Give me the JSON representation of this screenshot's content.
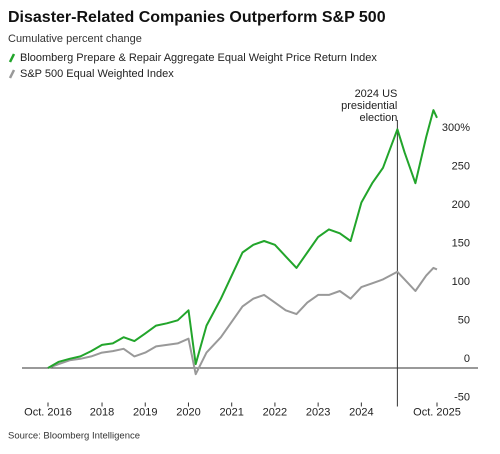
{
  "chart_data": {
    "type": "line",
    "title": "Disaster-Related Companies Outperform S&P 500",
    "subtitle": "Cumulative percent change",
    "source": "Source: Bloomberg Intelligence",
    "x": [
      "2016-10",
      "2017-01",
      "2017-04",
      "2017-07",
      "2017-10",
      "2018-01",
      "2018-04",
      "2018-07",
      "2018-10",
      "2019-01",
      "2019-04",
      "2019-07",
      "2019-10",
      "2020-01",
      "2020-03",
      "2020-06",
      "2020-10",
      "2021-01",
      "2021-04",
      "2021-07",
      "2021-10",
      "2022-01",
      "2022-04",
      "2022-07",
      "2022-10",
      "2023-01",
      "2023-04",
      "2023-07",
      "2023-10",
      "2024-01",
      "2024-04",
      "2024-07",
      "2024-11",
      "2025-01",
      "2025-04",
      "2025-07",
      "2025-09",
      "2025-10"
    ],
    "series": [
      {
        "name": "Bloomberg Prepare & Repair Aggregate Equal Weight Price Return Index",
        "color": "#22a52b",
        "values": [
          0,
          8,
          12,
          15,
          22,
          30,
          32,
          40,
          35,
          45,
          55,
          58,
          62,
          75,
          5,
          55,
          90,
          120,
          150,
          160,
          165,
          160,
          145,
          130,
          150,
          170,
          180,
          175,
          165,
          215,
          240,
          260,
          310,
          280,
          240,
          300,
          335,
          325
        ]
      },
      {
        "name": "S&P 500 Equal Weighted Index",
        "color": "#999999",
        "values": [
          0,
          5,
          10,
          12,
          15,
          20,
          22,
          25,
          15,
          20,
          28,
          30,
          32,
          38,
          -8,
          20,
          40,
          60,
          80,
          90,
          95,
          85,
          75,
          70,
          85,
          95,
          95,
          100,
          90,
          105,
          110,
          115,
          125,
          115,
          100,
          120,
          130,
          128
        ]
      }
    ],
    "xlim": [
      "2016-10",
      "2025-10"
    ],
    "xticks": [
      {
        "value": "2016-10",
        "label": "Oct. 2016"
      },
      {
        "value": "2018-01",
        "label": "2018"
      },
      {
        "value": "2019-01",
        "label": "2019"
      },
      {
        "value": "2020-01",
        "label": "2020"
      },
      {
        "value": "2021-01",
        "label": "2021"
      },
      {
        "value": "2022-01",
        "label": "2022"
      },
      {
        "value": "2023-01",
        "label": "2023"
      },
      {
        "value": "2024-01",
        "label": "2024"
      },
      {
        "value": "2025-10",
        "label": "Oct. 2025"
      }
    ],
    "ylim": [
      -50,
      350
    ],
    "yticks": [
      -50,
      0,
      50,
      100,
      150,
      200,
      250,
      {
        "value": 300,
        "label": "300%"
      }
    ],
    "grid": false,
    "annotations": [
      {
        "x": "2024-11",
        "label": [
          "2024 US",
          "presidential",
          "election"
        ]
      }
    ]
  }
}
